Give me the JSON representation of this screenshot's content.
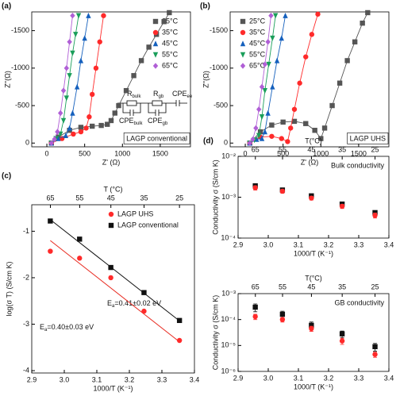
{
  "chart_data": [
    {
      "type": "scatter",
      "panel_label": "(a)",
      "xlabel": "Z' (Ω)",
      "ylabel": "Z''(Ω)",
      "xlim": [
        -200,
        1900
      ],
      "xticks": [
        0,
        500,
        1000,
        1500
      ],
      "ylim": [
        50,
        -1750
      ],
      "yticks": [
        0,
        -500,
        -1000,
        -1500
      ],
      "lines": true,
      "legend": "upper right",
      "annotation": "LAGP conventional",
      "circuit": [
        {
          "main": "R",
          "sub": "bulk"
        },
        {
          "main": "R",
          "sub": "gb"
        },
        {
          "main": "CPE",
          "sub": "ee"
        },
        {
          "main": "CPE",
          "sub": "bulk"
        },
        {
          "main": "CPE",
          "sub": "gb"
        }
      ],
      "series": [
        {
          "name": "25°C",
          "color": "#555555",
          "marker": "square",
          "x": [
            60,
            150,
            300,
            450,
            600,
            720,
            800,
            850,
            900,
            950,
            1050,
            1150,
            1250,
            1350,
            1450,
            1550,
            1620
          ],
          "values": [
            0,
            -80,
            -170,
            -210,
            -225,
            -235,
            -250,
            -300,
            -400,
            -500,
            -700,
            -900,
            -1100,
            -1280,
            -1450,
            -1620,
            -1740
          ]
        },
        {
          "name": "35°C",
          "color": "#ff2a2a",
          "marker": "circle",
          "x": [
            60,
            200,
            350,
            450,
            520,
            560,
            600,
            650,
            700,
            750
          ],
          "values": [
            0,
            -60,
            -120,
            -150,
            -200,
            -350,
            -650,
            -1000,
            -1350,
            -1700
          ]
        },
        {
          "name": "45°C",
          "color": "#1560bd",
          "marker": "triangle",
          "x": [
            60,
            150,
            250,
            300,
            340,
            400,
            450,
            500,
            550
          ],
          "values": [
            0,
            -60,
            -100,
            -200,
            -400,
            -750,
            -1100,
            -1400,
            -1700
          ]
        },
        {
          "name": "55°C",
          "color": "#1a9e5a",
          "marker": "down",
          "x": [
            60,
            120,
            180,
            220,
            260,
            300,
            340,
            380,
            420
          ],
          "values": [
            0,
            -60,
            -120,
            -300,
            -600,
            -900,
            -1200,
            -1450,
            -1700
          ]
        },
        {
          "name": "65°C",
          "color": "#b05fd6",
          "marker": "diamond",
          "x": [
            60,
            100,
            140,
            180,
            220,
            260,
            300,
            340
          ],
          "values": [
            0,
            -50,
            -150,
            -400,
            -700,
            -1000,
            -1350,
            -1700
          ]
        }
      ]
    },
    {
      "type": "scatter",
      "panel_label": "(b)",
      "xlabel": "Z' (Ω)",
      "ylabel": "Z''(Ω)",
      "xlim": [
        -200,
        1900
      ],
      "xticks": [
        0,
        500,
        1000,
        1500
      ],
      "ylim": [
        50,
        -1750
      ],
      "yticks": [
        0,
        -500,
        -1000,
        -1500
      ],
      "lines": true,
      "legend": "upper left",
      "annotation": "LAGP UHS",
      "series": [
        {
          "name": "25°C",
          "color": "#555555",
          "marker": "square",
          "x": [
            60,
            200,
            350,
            500,
            650,
            800,
            920,
            1000,
            1050,
            1150,
            1250,
            1350,
            1450,
            1550,
            1620
          ],
          "values": [
            0,
            -150,
            -240,
            -280,
            -290,
            -260,
            -170,
            -60,
            -200,
            -500,
            -800,
            -1100,
            -1350,
            -1600,
            -1740
          ]
        },
        {
          "name": "35°C",
          "color": "#ff2a2a",
          "marker": "circle",
          "x": [
            60,
            200,
            350,
            480,
            560,
            600,
            650,
            720,
            800,
            880,
            960
          ],
          "values": [
            0,
            -80,
            -90,
            -60,
            -20,
            -200,
            -450,
            -800,
            -1150,
            -1450,
            -1720
          ]
        },
        {
          "name": "45°C",
          "color": "#1560bd",
          "marker": "triangle",
          "x": [
            60,
            150,
            220,
            260,
            300,
            360,
            420,
            480,
            530
          ],
          "values": [
            0,
            -50,
            -60,
            -150,
            -400,
            -750,
            -1100,
            -1400,
            -1700
          ]
        },
        {
          "name": "55°C",
          "color": "#1a9e5a",
          "marker": "down",
          "x": [
            60,
            120,
            180,
            220,
            260,
            310,
            360,
            400
          ],
          "values": [
            0,
            -40,
            -100,
            -350,
            -700,
            -1050,
            -1400,
            -1700
          ]
        },
        {
          "name": "65°C",
          "color": "#b05fd6",
          "marker": "diamond",
          "x": [
            60,
            100,
            140,
            180,
            220,
            260,
            300,
            340
          ],
          "values": [
            0,
            -50,
            -200,
            -450,
            -750,
            -1050,
            -1350,
            -1700
          ]
        }
      ]
    },
    {
      "type": "scatter",
      "panel_label": "(c)",
      "xlabel": "1000/T (K⁻¹)",
      "ylabel": "log(σ T) (S/cm K)",
      "x2label": "T (°C)",
      "xlim": [
        2.9,
        3.4
      ],
      "xticks": [
        2.9,
        {
          "value": 3,
          "label": "3.0"
        },
        3.1,
        3.2,
        3.3,
        3.4
      ],
      "x2ticks": [
        65,
        55,
        45,
        35,
        25
      ],
      "ylim": [
        -4.05,
        -0.43
      ],
      "yticks": [
        -4,
        -3,
        -2,
        -1
      ],
      "legend": "upper right",
      "series": [
        {
          "name": "LAGP UHS",
          "color": "#ff2a2a",
          "marker": "circle",
          "x": [
            2.957,
            3.047,
            3.143,
            3.245,
            3.354
          ],
          "values": [
            -1.43,
            -1.58,
            -2.0,
            -2.72,
            -3.35
          ]
        },
        {
          "name": "LAGP conventional",
          "color": "#111111",
          "marker": "square",
          "x": [
            2.957,
            3.047,
            3.143,
            3.245,
            3.354
          ],
          "values": [
            -0.78,
            -1.17,
            -1.78,
            -2.32,
            -2.92
          ]
        }
      ],
      "fits": [
        {
          "color": "#e8281e",
          "x": [
            2.957,
            3.354
          ],
          "values": [
            -1.2,
            -3.38
          ]
        },
        {
          "color": "#111111",
          "x": [
            2.957,
            3.354
          ],
          "values": [
            -0.75,
            -2.93
          ]
        }
      ],
      "annotations": [
        {
          "main": "E",
          "sub": "a",
          "rest": "=0.41±0.02 eV",
          "color": "#111111"
        },
        {
          "main": "E",
          "sub": "a",
          "rest": "=0.40±0.03 eV",
          "color": "#e8281e"
        }
      ]
    },
    {
      "type": "scatter",
      "panel_label": "(d)",
      "title": "Bulk conductivity",
      "xlabel": "1000/T (K⁻¹)",
      "ylabel": "Conductivity σ (S/cm K)",
      "x2label": "T(°C)",
      "xlim": [
        2.9,
        3.4
      ],
      "xticks": [
        2.9,
        {
          "value": 3,
          "label": "3.0"
        },
        3.1,
        3.2,
        3.3,
        3.4
      ],
      "x2ticks": [
        65,
        55,
        45,
        35,
        25
      ],
      "log_y": true,
      "ylim": [
        0.0001,
        0.01
      ],
      "yticks": [
        {
          "value": 0.0001,
          "label": "10⁻⁴"
        },
        {
          "value": 0.001,
          "label": "10⁻³"
        },
        {
          "value": 0.01,
          "label": "10⁻²"
        }
      ],
      "series": [
        {
          "color": "#111111",
          "marker": "square",
          "x": [
            2.957,
            3.047,
            3.143,
            3.245,
            3.354
          ],
          "values": [
            0.0019,
            0.0015,
            0.00108,
            0.00068,
            0.00042
          ],
          "errors": [
            0.0002,
            0.00015,
            0.0001,
            7e-05,
            5e-05
          ]
        },
        {
          "color": "#ff2a2a",
          "marker": "circle",
          "x": [
            2.957,
            3.047,
            3.143,
            3.245,
            3.354
          ],
          "values": [
            0.0017,
            0.0014,
            0.00095,
            0.0006,
            0.00036
          ],
          "errors": [
            0.0002,
            0.00015,
            0.0001,
            7e-05,
            5e-05
          ]
        }
      ]
    },
    {
      "type": "scatter",
      "title": "GB conductivity",
      "xlabel": "1000/T (K⁻¹)",
      "ylabel": "Conductivity σ (S/cm K)",
      "x2label": "T(°C)",
      "xlim": [
        2.9,
        3.4
      ],
      "xticks": [
        2.9,
        {
          "value": 3,
          "label": "3.0"
        },
        3.1,
        3.2,
        3.3,
        3.4
      ],
      "x2ticks": [
        65,
        55,
        45,
        35,
        25
      ],
      "log_y": true,
      "ylim": [
        1e-06,
        0.001
      ],
      "yticks": [
        {
          "value": 1e-06,
          "label": "10⁻⁶"
        },
        {
          "value": 1e-05,
          "label": "10⁻⁵"
        },
        {
          "value": 0.0001,
          "label": "10⁻⁴"
        },
        {
          "value": 0.001,
          "label": "10⁻³"
        }
      ],
      "series": [
        {
          "color": "#111111",
          "marker": "square",
          "x": [
            2.957,
            3.047,
            3.143,
            3.245,
            3.354
          ],
          "values": [
            0.0003,
            0.00016,
            6e-05,
            2.8e-05,
            9e-06
          ],
          "errors": [
            0.0001,
            5e-05,
            2e-05,
            8e-06,
            3e-06
          ]
        },
        {
          "color": "#ff2a2a",
          "marker": "circle",
          "x": [
            2.957,
            3.047,
            3.143,
            3.245,
            3.354
          ],
          "values": [
            0.00013,
            0.0001,
            4.5e-05,
            1.5e-05,
            4.5e-06
          ],
          "errors": [
            3e-05,
            2e-05,
            1e-05,
            4e-06,
            1e-06
          ]
        }
      ]
    }
  ]
}
